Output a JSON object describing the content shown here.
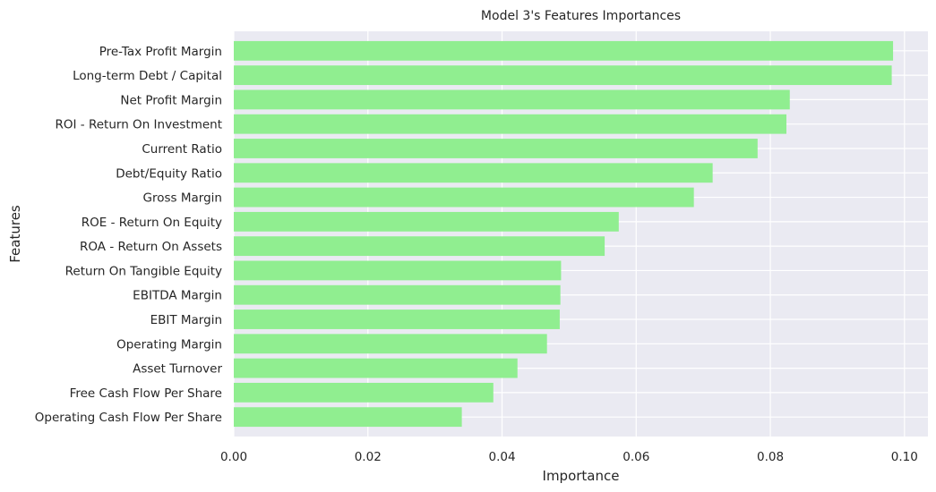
{
  "chart_data": {
    "type": "bar",
    "orientation": "horizontal",
    "title": "Model 3's Features Importances",
    "xlabel": "Importance",
    "ylabel": "Features",
    "categories": [
      "Pre-Tax Profit Margin",
      "Long-term Debt / Capital",
      "Net Profit Margin",
      "ROI - Return On Investment",
      "Current Ratio",
      "Debt/Equity Ratio",
      "Gross Margin",
      "ROE - Return On Equity",
      "ROA - Return On Assets",
      "Return On Tangible Equity",
      "EBITDA Margin",
      "EBIT Margin",
      "Operating Margin",
      "Asset Turnover",
      "Free Cash Flow Per Share",
      "Operating Cash Flow Per Share"
    ],
    "values": [
      0.0983,
      0.0981,
      0.0829,
      0.0824,
      0.0781,
      0.0714,
      0.0686,
      0.0574,
      0.0553,
      0.0488,
      0.0487,
      0.0486,
      0.0467,
      0.0423,
      0.0387,
      0.034
    ],
    "xlim": [
      0,
      0.1035
    ],
    "xticks": [
      "0.00",
      "0.02",
      "0.04",
      "0.06",
      "0.08",
      "0.10"
    ],
    "bar_color": "#90ee90",
    "background_color": "#eaeaf2",
    "grid_color": "#ffffff",
    "grid": true
  }
}
